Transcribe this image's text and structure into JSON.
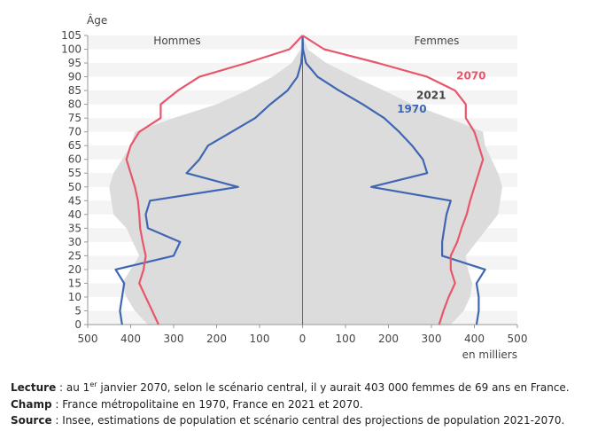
{
  "chart_data": {
    "type": "area",
    "chart_kind": "population-pyramid",
    "y_axis_title": "Âge",
    "x_axis_title": "en milliers",
    "left_label": "Hommes",
    "right_label": "Femmes",
    "xlim": [
      -500,
      500
    ],
    "ylim": [
      0,
      105
    ],
    "x_ticks": [
      {
        "value": -500,
        "label": "500"
      },
      {
        "value": -400,
        "label": "400"
      },
      {
        "value": -300,
        "label": "300"
      },
      {
        "value": -200,
        "label": "200"
      },
      {
        "value": -100,
        "label": "100"
      },
      {
        "value": 0,
        "label": "0"
      },
      {
        "value": 100,
        "label": "100"
      },
      {
        "value": 200,
        "label": "200"
      },
      {
        "value": 300,
        "label": "300"
      },
      {
        "value": 400,
        "label": "400"
      },
      {
        "value": 500,
        "label": "500"
      }
    ],
    "y_ticks": [
      0,
      5,
      10,
      15,
      20,
      25,
      30,
      35,
      40,
      45,
      50,
      55,
      60,
      65,
      70,
      75,
      80,
      85,
      90,
      95,
      100,
      105
    ],
    "ages": [
      0,
      5,
      10,
      15,
      20,
      25,
      30,
      35,
      40,
      45,
      50,
      55,
      60,
      65,
      70,
      75,
      80,
      85,
      90,
      95,
      100,
      105
    ],
    "series": [
      {
        "name": "2021",
        "style": "fill",
        "color": "#dcdcdc",
        "men": [
          360,
          390,
          410,
          420,
          400,
          380,
          395,
          410,
          440,
          445,
          450,
          440,
          420,
          400,
          390,
          300,
          200,
          130,
          70,
          25,
          5,
          0
        ],
        "women": [
          345,
          375,
          390,
          395,
          385,
          380,
          405,
          430,
          455,
          460,
          465,
          455,
          440,
          425,
          420,
          340,
          255,
          190,
          120,
          55,
          12,
          0
        ]
      },
      {
        "name": "1970",
        "style": "line",
        "color": "#3f66b2",
        "men": [
          420,
          425,
          420,
          415,
          435,
          300,
          285,
          360,
          365,
          355,
          150,
          270,
          240,
          220,
          165,
          110,
          75,
          35,
          12,
          3,
          0,
          0
        ],
        "women": [
          405,
          410,
          410,
          405,
          425,
          325,
          325,
          330,
          335,
          345,
          160,
          290,
          280,
          255,
          225,
          190,
          140,
          85,
          35,
          8,
          1,
          0
        ]
      },
      {
        "name": "2070",
        "style": "line",
        "color": "#e8566c",
        "men": [
          335,
          350,
          365,
          380,
          370,
          365,
          372,
          378,
          380,
          383,
          390,
          400,
          410,
          400,
          380,
          330,
          330,
          290,
          240,
          130,
          30,
          0
        ],
        "women": [
          318,
          328,
          340,
          355,
          345,
          345,
          360,
          370,
          382,
          390,
          400,
          410,
          420,
          410,
          400,
          380,
          380,
          355,
          290,
          175,
          50,
          0
        ]
      }
    ],
    "series_labels": [
      {
        "name": "2070",
        "color": "#e8566c",
        "age": 89,
        "value": 358
      },
      {
        "name": "2021",
        "color": "#444444",
        "age": 82,
        "value": 265
      },
      {
        "name": "1970",
        "color": "#3f66b2",
        "age": 77,
        "value": 220
      }
    ]
  },
  "notes": [
    {
      "label": "Lecture",
      "pre": " : au 1",
      "sup": "er",
      "post": " janvier 2070, selon le scénario central, il y aurait 403 000 femmes de 69 ans en France."
    },
    {
      "label": "Champ",
      "pre": " : France métropolitaine en 1970, France en 2021 et 2070.",
      "sup": "",
      "post": ""
    },
    {
      "label": "Source",
      "pre": " : Insee, estimations de population et scénario central des projections de population 2021-2070.",
      "sup": "",
      "post": ""
    }
  ]
}
